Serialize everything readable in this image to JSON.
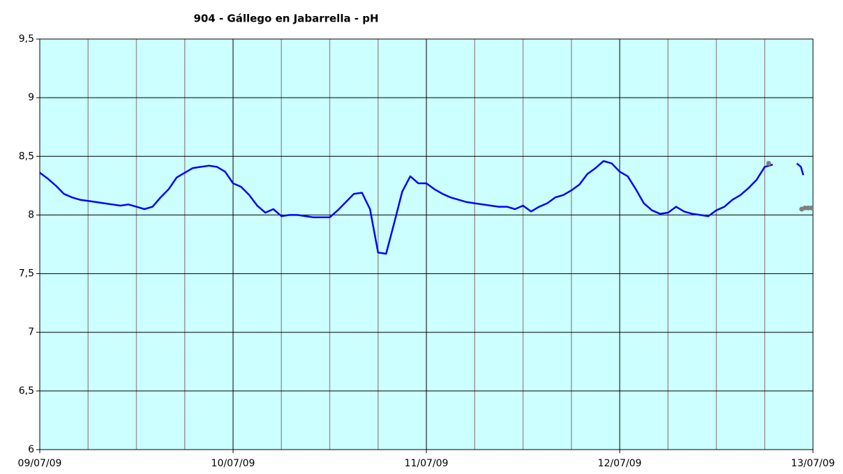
{
  "chart_data": {
    "type": "line",
    "title": "904 - Gállego en Jabarrella - pH",
    "xlim": [
      0,
      96
    ],
    "xticks": [
      {
        "value": 0,
        "label": "09/07/09"
      },
      {
        "value": 24,
        "label": "10/07/09"
      },
      {
        "value": 48,
        "label": "11/07/09"
      },
      {
        "value": 72,
        "label": "12/07/09"
      },
      {
        "value": 96,
        "label": "13/07/09"
      }
    ],
    "minor_xticks": [
      6,
      12,
      18,
      30,
      36,
      42,
      54,
      60,
      66,
      78,
      84,
      90
    ],
    "ylim": [
      6,
      9.5
    ],
    "yticks": [
      6,
      {
        "value": 6.5,
        "label": "6,5"
      },
      7,
      {
        "value": 7.5,
        "label": "7,5"
      },
      8,
      {
        "value": 8.5,
        "label": "8,5"
      },
      9,
      {
        "value": 9.5,
        "label": "9,5"
      }
    ],
    "grid": true,
    "background": "#ccffff",
    "series": [
      {
        "color": "#0000ff",
        "marker": false,
        "x": [
          0,
          1,
          2,
          3,
          4,
          5,
          6,
          7,
          8,
          9,
          10,
          11,
          12,
          13,
          14,
          15,
          16,
          17,
          18,
          19,
          20,
          21,
          22,
          23,
          24,
          25,
          26,
          27,
          28,
          29,
          30,
          31,
          32,
          33,
          34,
          35,
          36,
          37,
          38,
          39,
          40,
          41,
          42,
          43,
          44,
          45,
          46,
          47,
          48,
          49,
          50,
          51,
          52,
          53,
          54,
          55,
          56,
          57,
          58,
          59,
          60,
          61,
          62,
          63,
          64,
          65,
          66,
          67,
          68,
          69,
          70,
          71,
          72,
          73,
          74,
          75,
          76,
          77,
          78,
          79,
          80,
          81,
          82,
          83,
          84,
          85,
          86,
          87,
          88,
          89,
          90,
          91,
          92,
          94,
          94.5,
          94.8
        ],
        "values": [
          8.36,
          8.31,
          8.25,
          8.18,
          8.15,
          8.13,
          8.12,
          8.11,
          8.1,
          8.09,
          8.08,
          8.09,
          8.07,
          8.05,
          8.07,
          8.15,
          8.22,
          8.32,
          8.36,
          8.4,
          8.41,
          8.42,
          8.41,
          8.37,
          8.27,
          8.24,
          8.17,
          8.08,
          8.02,
          8.05,
          7.99,
          8.0,
          8.0,
          7.99,
          7.98,
          7.98,
          7.98,
          8.04,
          8.11,
          8.18,
          8.19,
          8.05,
          7.68,
          7.67,
          7.93,
          8.2,
          8.33,
          8.27,
          8.27,
          8.22,
          8.18,
          8.15,
          8.13,
          8.11,
          8.1,
          8.09,
          8.08,
          8.07,
          8.07,
          8.05,
          8.08,
          8.03,
          8.07,
          8.1,
          8.15,
          8.17,
          8.21,
          8.26,
          8.35,
          8.4,
          8.46,
          8.44,
          8.37,
          8.33,
          8.22,
          8.1,
          8.04,
          8.01,
          8.02,
          8.07,
          8.03,
          8.01,
          8.0,
          7.99,
          8.04,
          8.07,
          8.13,
          8.17,
          8.23,
          8.3,
          8.41,
          8.43,
          null,
          8.44,
          8.41,
          8.34
        ]
      },
      {
        "color": "#808080",
        "marker": true,
        "x": [
          90.5,
          94.6,
          95,
          95.4,
          95.8
        ],
        "values": [
          8.44,
          8.05,
          8.06,
          8.06,
          8.06
        ]
      }
    ]
  }
}
